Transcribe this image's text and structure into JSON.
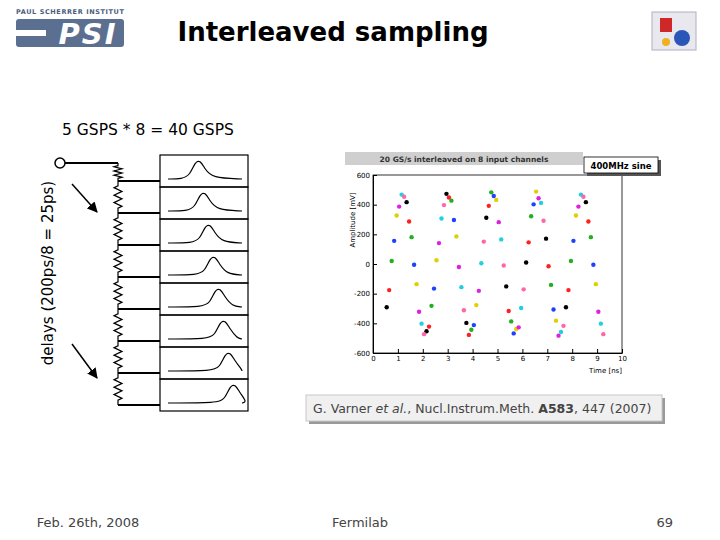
{
  "header": {
    "title": "Interleaved sampling",
    "logo_caption": "PAUL SCHERRER INSTITUT",
    "logo": "PSI"
  },
  "diagram": {
    "label": "5 GSPS * 8 = 40 GSPS",
    "delay_label": "delays (200ps/8 = 25ps)"
  },
  "chart_data": {
    "type": "scatter",
    "title": "20 GS/s interleaved on 8 input channels",
    "annotation": "400MHz sine",
    "x_label": "Time [ns]",
    "y_label": "Amplitude [mV]",
    "xlim": [
      0,
      10
    ],
    "ylim": [
      -600,
      600
    ],
    "xticks": [
      0,
      1,
      2,
      3,
      4,
      5,
      6,
      7,
      8,
      9,
      10
    ],
    "yticks": [
      -600,
      -400,
      -200,
      0,
      200,
      400,
      600
    ],
    "marker": "circle",
    "series": [
      {
        "color": "#000000",
        "x": [
          0.55,
          1.35,
          2.15,
          2.95,
          3.75,
          4.55,
          5.35,
          6.15,
          6.95,
          7.75,
          8.55
        ],
        "values": [
          -292,
          417,
          -453,
          473,
          -397,
          312,
          -151,
          10,
          171,
          -292,
          417
        ]
      },
      {
        "color": "#ff2020",
        "x": [
          0.65,
          1.45,
          2.25,
          3.05,
          3.85,
          4.65,
          5.45,
          6.25,
          7.05,
          7.85,
          8.65
        ],
        "values": [
          -176,
          287,
          -422,
          448,
          -478,
          392,
          -317,
          146,
          -15,
          -176,
          287
        ]
      },
      {
        "color": "#20b020",
        "x": [
          0.75,
          1.55,
          2.35,
          3.15,
          3.95,
          4.75,
          5.55,
          6.35,
          7.15,
          7.95,
          8.75
        ],
        "values": [
          20,
          181,
          -282,
          427,
          -443,
          483,
          -387,
          322,
          -141,
          20,
          181
        ]
      },
      {
        "color": "#2040ff",
        "x": [
          0.85,
          1.65,
          2.45,
          3.25,
          4.05,
          4.85,
          5.65,
          6.45,
          7.25,
          8.05,
          8.85
        ],
        "values": [
          156,
          -5,
          -166,
          297,
          -412,
          458,
          -468,
          402,
          -307,
          156,
          -5
        ]
      },
      {
        "color": "#e0d000",
        "x": [
          0.95,
          1.75,
          2.55,
          3.35,
          4.15,
          4.95,
          5.75,
          6.55,
          7.35,
          8.15,
          8.95
        ],
        "values": [
          327,
          -136,
          25,
          186,
          -277,
          432,
          -438,
          488,
          -382,
          327,
          -136
        ]
      },
      {
        "color": "#e020e0",
        "x": [
          1.05,
          1.85,
          2.65,
          3.45,
          4.25,
          5.05,
          5.85,
          6.65,
          7.45,
          8.25,
          9.05
        ],
        "values": [
          387,
          -322,
          141,
          -20,
          -181,
          282,
          -427,
          443,
          -483,
          387,
          -322
        ]
      },
      {
        "color": "#20d0e0",
        "x": [
          1.15,
          1.95,
          2.75,
          3.55,
          4.35,
          5.15,
          5.95,
          6.75,
          7.55,
          8.35,
          9.15
        ],
        "values": [
          468,
          -402,
          307,
          -156,
          5,
          166,
          -297,
          412,
          -458,
          468,
          -402
        ]
      },
      {
        "color": "#ff66aa",
        "x": [
          1.25,
          2.05,
          2.85,
          3.65,
          4.45,
          5.25,
          6.05,
          6.85,
          7.65,
          8.45,
          9.25
        ],
        "values": [
          453,
          -473,
          397,
          -312,
          151,
          -10,
          -171,
          292,
          -417,
          453,
          -473
        ]
      }
    ]
  },
  "citation": [
    {
      "text": "G. Varner ",
      "style": "normal"
    },
    {
      "text": "et al.",
      "style": "italic"
    },
    {
      "text": ", Nucl.Instrum.Meth. ",
      "style": "normal"
    },
    {
      "text": "A583",
      "style": "bold"
    },
    {
      "text": ", 447 (2007)",
      "style": "normal"
    }
  ],
  "footer": {
    "date": "Feb. 26th, 2008",
    "venue": "Fermilab",
    "page": "69"
  }
}
